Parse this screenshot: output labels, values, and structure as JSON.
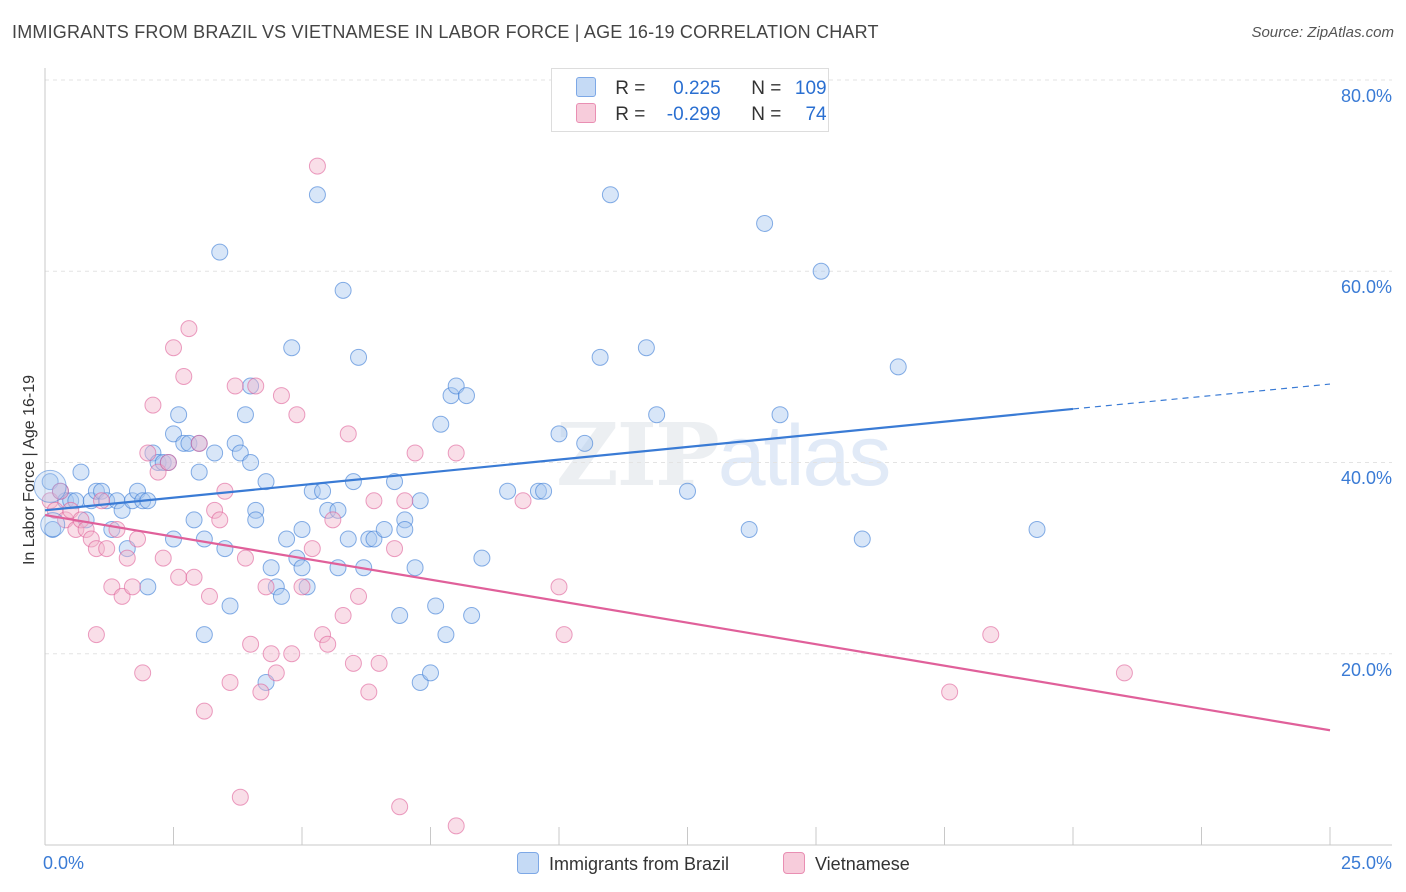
{
  "title": "IMMIGRANTS FROM BRAZIL VS VIETNAMESE IN LABOR FORCE | AGE 16-19 CORRELATION CHART",
  "source": "Source: ZipAtlas.com",
  "watermark": {
    "zip": "ZIP",
    "atlas": "atlas"
  },
  "colors": {
    "blue": "#3a7bd5",
    "blue_fill": "#a9c8f0",
    "pink": "#e0609a",
    "pink_fill": "#f2b5cc"
  },
  "legend": {
    "rows": [
      {
        "r_label": "R =",
        "r_value": "0.225",
        "n_label": "N =",
        "n_value": "109"
      },
      {
        "r_label": "R =",
        "r_value": "-0.299",
        "n_label": "N =",
        "n_value": "74"
      }
    ]
  },
  "chart_data": {
    "type": "scatter",
    "title": "IMMIGRANTS FROM BRAZIL VS VIETNAMESE IN LABOR FORCE | AGE 16-19 CORRELATION CHART",
    "xlabel": "",
    "ylabel": "In Labor Force | Age 16-19",
    "xlim": [
      0,
      25
    ],
    "ylim": [
      0,
      80
    ],
    "x_tick_labels": [
      "0.0%",
      "25.0%"
    ],
    "y_tick_labels": [
      "20.0%",
      "40.0%",
      "60.0%",
      "80.0%"
    ],
    "y_ticks": [
      20,
      40,
      60,
      80
    ],
    "grid": true,
    "legend_position": "top-center",
    "series": [
      {
        "name": "Immigrants from Brazil",
        "color": "#3a7bd5",
        "trend": {
          "x": [
            0,
            20,
            25
          ],
          "y": [
            35.0,
            45.6,
            48.2
          ]
        },
        "points": [
          [
            0.1,
            38
          ],
          [
            0.15,
            33
          ],
          [
            0.3,
            37
          ],
          [
            0.4,
            36
          ],
          [
            0.5,
            36
          ],
          [
            0.6,
            36
          ],
          [
            0.7,
            39
          ],
          [
            0.8,
            34
          ],
          [
            0.9,
            36
          ],
          [
            1.0,
            37
          ],
          [
            1.1,
            37
          ],
          [
            1.2,
            36
          ],
          [
            1.3,
            33
          ],
          [
            1.4,
            36
          ],
          [
            1.5,
            35
          ],
          [
            1.6,
            31
          ],
          [
            1.7,
            36
          ],
          [
            1.8,
            37
          ],
          [
            1.9,
            36
          ],
          [
            2.0,
            36
          ],
          [
            2.0,
            27
          ],
          [
            2.1,
            41
          ],
          [
            2.2,
            40
          ],
          [
            2.3,
            40
          ],
          [
            2.4,
            40
          ],
          [
            2.5,
            43
          ],
          [
            2.5,
            32
          ],
          [
            2.6,
            45
          ],
          [
            2.7,
            42
          ],
          [
            2.8,
            42
          ],
          [
            2.9,
            34
          ],
          [
            3.0,
            39
          ],
          [
            3.0,
            42
          ],
          [
            3.1,
            22
          ],
          [
            3.1,
            32
          ],
          [
            3.3,
            41
          ],
          [
            3.4,
            62
          ],
          [
            3.5,
            31
          ],
          [
            3.6,
            25
          ],
          [
            3.7,
            42
          ],
          [
            3.8,
            41
          ],
          [
            3.9,
            45
          ],
          [
            4.0,
            48
          ],
          [
            4.0,
            40
          ],
          [
            4.1,
            35
          ],
          [
            4.1,
            34
          ],
          [
            4.3,
            38
          ],
          [
            4.3,
            17
          ],
          [
            4.4,
            29
          ],
          [
            4.5,
            27
          ],
          [
            4.6,
            26
          ],
          [
            4.7,
            32
          ],
          [
            4.8,
            52
          ],
          [
            4.9,
            30
          ],
          [
            5.0,
            29
          ],
          [
            5.0,
            33
          ],
          [
            5.1,
            27
          ],
          [
            5.2,
            37
          ],
          [
            5.3,
            68
          ],
          [
            5.4,
            37
          ],
          [
            5.5,
            35
          ],
          [
            5.7,
            35
          ],
          [
            5.7,
            29
          ],
          [
            5.8,
            58
          ],
          [
            5.9,
            32
          ],
          [
            6.0,
            38
          ],
          [
            6.1,
            51
          ],
          [
            6.2,
            29
          ],
          [
            6.3,
            32
          ],
          [
            6.4,
            32
          ],
          [
            6.6,
            33
          ],
          [
            6.8,
            38
          ],
          [
            6.9,
            24
          ],
          [
            7.0,
            34
          ],
          [
            7.0,
            33
          ],
          [
            7.2,
            29
          ],
          [
            7.3,
            17
          ],
          [
            7.3,
            36
          ],
          [
            7.5,
            18
          ],
          [
            7.6,
            25
          ],
          [
            7.7,
            44
          ],
          [
            7.8,
            22
          ],
          [
            7.9,
            47
          ],
          [
            8.0,
            48
          ],
          [
            8.2,
            47
          ],
          [
            8.3,
            24
          ],
          [
            8.5,
            30
          ],
          [
            9.0,
            37
          ],
          [
            9.6,
            37
          ],
          [
            9.7,
            37
          ],
          [
            10.0,
            43
          ],
          [
            10.5,
            42
          ],
          [
            10.8,
            51
          ],
          [
            11.0,
            68
          ],
          [
            11.7,
            52
          ],
          [
            11.9,
            45
          ],
          [
            12.5,
            37
          ],
          [
            13.7,
            33
          ],
          [
            14.0,
            65
          ],
          [
            14.3,
            45
          ],
          [
            15.1,
            60
          ],
          [
            15.9,
            32
          ],
          [
            16.6,
            50
          ],
          [
            19.3,
            33
          ]
        ]
      },
      {
        "name": "Vietnamese",
        "color": "#e0609a",
        "trend": {
          "x": [
            0,
            25
          ],
          "y": [
            34.5,
            12.0
          ]
        },
        "points": [
          [
            0.1,
            36
          ],
          [
            0.2,
            35
          ],
          [
            0.3,
            37
          ],
          [
            0.4,
            34
          ],
          [
            0.5,
            35
          ],
          [
            0.6,
            33
          ],
          [
            0.7,
            34
          ],
          [
            0.8,
            33
          ],
          [
            0.9,
            32
          ],
          [
            1.0,
            31
          ],
          [
            1.0,
            22
          ],
          [
            1.1,
            36
          ],
          [
            1.2,
            31
          ],
          [
            1.3,
            27
          ],
          [
            1.4,
            33
          ],
          [
            1.5,
            26
          ],
          [
            1.6,
            30
          ],
          [
            1.7,
            27
          ],
          [
            1.8,
            32
          ],
          [
            1.9,
            18
          ],
          [
            2.0,
            41
          ],
          [
            2.1,
            46
          ],
          [
            2.2,
            39
          ],
          [
            2.3,
            30
          ],
          [
            2.4,
            40
          ],
          [
            2.5,
            52
          ],
          [
            2.6,
            28
          ],
          [
            2.7,
            49
          ],
          [
            2.8,
            54
          ],
          [
            2.9,
            28
          ],
          [
            3.0,
            42
          ],
          [
            3.1,
            14
          ],
          [
            3.2,
            26
          ],
          [
            3.3,
            35
          ],
          [
            3.4,
            34
          ],
          [
            3.5,
            37
          ],
          [
            3.6,
            17
          ],
          [
            3.7,
            48
          ],
          [
            3.8,
            5
          ],
          [
            3.9,
            30
          ],
          [
            4.0,
            21
          ],
          [
            4.1,
            48
          ],
          [
            4.2,
            16
          ],
          [
            4.3,
            27
          ],
          [
            4.4,
            20
          ],
          [
            4.5,
            18
          ],
          [
            4.6,
            47
          ],
          [
            4.8,
            20
          ],
          [
            4.9,
            45
          ],
          [
            5.0,
            27
          ],
          [
            5.2,
            31
          ],
          [
            5.3,
            71
          ],
          [
            5.4,
            22
          ],
          [
            5.5,
            21
          ],
          [
            5.6,
            34
          ],
          [
            5.8,
            24
          ],
          [
            5.9,
            43
          ],
          [
            6.0,
            19
          ],
          [
            6.1,
            26
          ],
          [
            6.3,
            16
          ],
          [
            6.4,
            36
          ],
          [
            6.5,
            19
          ],
          [
            6.8,
            31
          ],
          [
            6.9,
            4
          ],
          [
            7.0,
            36
          ],
          [
            7.2,
            41
          ],
          [
            8.0,
            41
          ],
          [
            8.0,
            2
          ],
          [
            9.3,
            36
          ],
          [
            10.0,
            27
          ],
          [
            10.1,
            22
          ],
          [
            17.6,
            16
          ],
          [
            18.4,
            22
          ],
          [
            21.0,
            18
          ]
        ]
      }
    ]
  },
  "bottom_legend": [
    "Immigrants from Brazil",
    "Vietnamese"
  ]
}
